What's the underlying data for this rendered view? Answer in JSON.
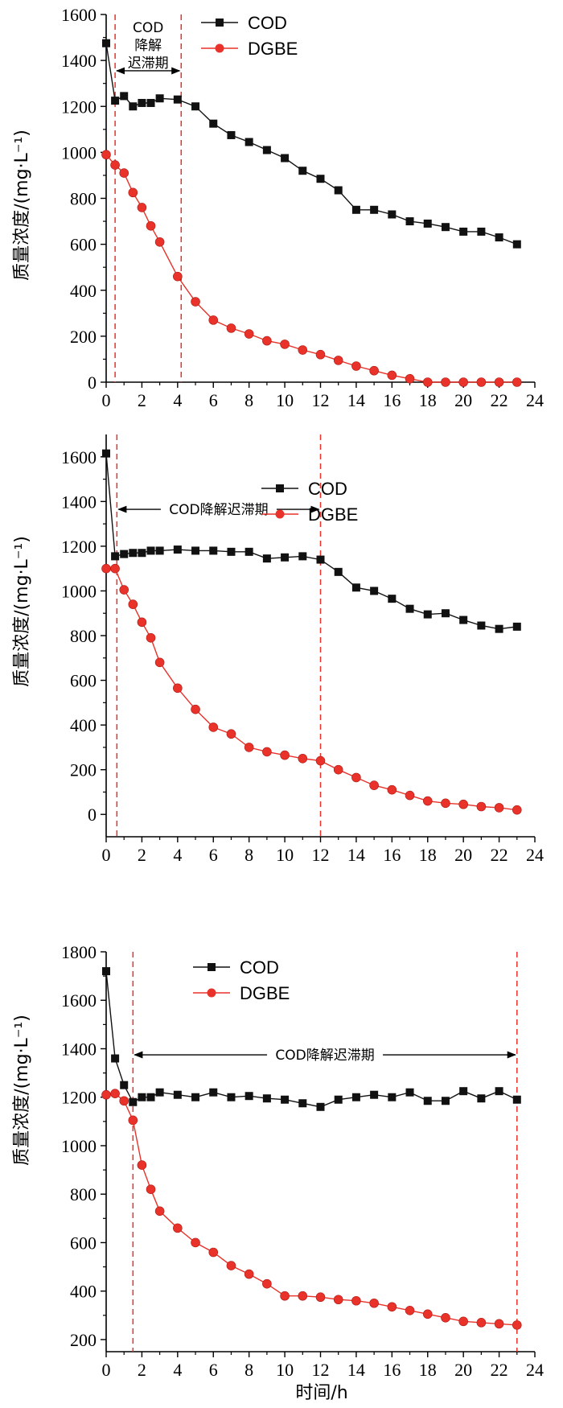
{
  "colors": {
    "cod": "#111111",
    "dgbe": "#e8322a",
    "guide": "#e8322a",
    "axis": "#000000"
  },
  "chart_data": [
    {
      "type": "line",
      "ylabel": "质量浓度/(mg·L⁻¹)",
      "xlabel": "",
      "xlim": [
        0,
        24
      ],
      "ylim": [
        0,
        1600
      ],
      "xticks": [
        0,
        2,
        4,
        6,
        8,
        10,
        12,
        14,
        16,
        18,
        20,
        22,
        24
      ],
      "yticks": [
        0,
        200,
        400,
        600,
        800,
        1000,
        1200,
        1400,
        1600
      ],
      "legend_position": "top-right",
      "series": [
        {
          "name": "COD",
          "marker": "square",
          "x": [
            0,
            0.5,
            1,
            1.5,
            2,
            2.5,
            3,
            4,
            5,
            6,
            7,
            8,
            9,
            10,
            11,
            12,
            13,
            14,
            15,
            16,
            17,
            18,
            19,
            20,
            21,
            22,
            23
          ],
          "y": [
            1475,
            1225,
            1245,
            1200,
            1215,
            1215,
            1235,
            1230,
            1200,
            1125,
            1075,
            1045,
            1010,
            975,
            920,
            885,
            835,
            750,
            750,
            730,
            700,
            690,
            675,
            655,
            655,
            630,
            600
          ]
        },
        {
          "name": "DGBE",
          "marker": "circle",
          "x": [
            0,
            0.5,
            1,
            1.5,
            2,
            2.5,
            3,
            4,
            5,
            6,
            7,
            8,
            9,
            10,
            11,
            12,
            13,
            14,
            15,
            16,
            17,
            18,
            19,
            20,
            21,
            22,
            23
          ],
          "y": [
            990,
            945,
            910,
            825,
            760,
            680,
            610,
            460,
            350,
            270,
            235,
            210,
            180,
            165,
            140,
            120,
            95,
            70,
            50,
            30,
            15,
            0,
            0,
            0,
            0,
            0,
            0
          ]
        }
      ],
      "vlines": [
        0.5,
        4.2
      ],
      "annotation": {
        "lines": [
          "COD",
          "降解",
          "迟滞期"
        ],
        "x_from": 0.5,
        "x_to": 4.2,
        "y": 1355
      }
    },
    {
      "type": "line",
      "ylabel": "质量浓度/(mg·L⁻¹)",
      "xlabel": "",
      "xlim": [
        0,
        24
      ],
      "ylim": [
        -100,
        1700
      ],
      "xticks": [
        0,
        2,
        4,
        6,
        8,
        10,
        12,
        14,
        16,
        18,
        20,
        22,
        24
      ],
      "yticks": [
        0,
        200,
        400,
        600,
        800,
        1000,
        1200,
        1400,
        1600
      ],
      "legend_position": "top-center",
      "series": [
        {
          "name": "COD",
          "marker": "square",
          "x": [
            0,
            0.5,
            1,
            1.5,
            2,
            2.5,
            3,
            4,
            5,
            6,
            7,
            8,
            9,
            10,
            11,
            12,
            13,
            14,
            15,
            16,
            17,
            18,
            19,
            20,
            21,
            22,
            23
          ],
          "y": [
            1615,
            1155,
            1165,
            1170,
            1170,
            1180,
            1180,
            1185,
            1180,
            1180,
            1175,
            1175,
            1145,
            1150,
            1155,
            1140,
            1085,
            1015,
            1000,
            965,
            920,
            895,
            900,
            870,
            845,
            830,
            840
          ]
        },
        {
          "name": "DGBE",
          "marker": "circle",
          "x": [
            0,
            0.5,
            1,
            1.5,
            2,
            2.5,
            3,
            4,
            5,
            6,
            7,
            8,
            9,
            10,
            11,
            12,
            13,
            14,
            15,
            16,
            17,
            18,
            19,
            20,
            21,
            22,
            23
          ],
          "y": [
            1100,
            1100,
            1005,
            940,
            860,
            790,
            680,
            565,
            470,
            390,
            360,
            300,
            280,
            265,
            250,
            240,
            200,
            165,
            130,
            110,
            85,
            60,
            50,
            45,
            35,
            30,
            20
          ]
        }
      ],
      "vlines": [
        0.6,
        12
      ],
      "annotation": {
        "lines": [
          "COD降解迟滞期"
        ],
        "x_from": 0.6,
        "x_to": 12,
        "y": 1365
      }
    },
    {
      "type": "line",
      "ylabel": "质量浓度/(mg·L⁻¹)",
      "xlabel": "时间/h",
      "xlim": [
        0,
        24
      ],
      "ylim": [
        150,
        1800
      ],
      "xticks": [
        0,
        2,
        4,
        6,
        8,
        10,
        12,
        14,
        16,
        18,
        20,
        22,
        24
      ],
      "yticks": [
        200,
        400,
        600,
        800,
        1000,
        1200,
        1400,
        1600,
        1800
      ],
      "legend_position": "top-left",
      "series": [
        {
          "name": "COD",
          "marker": "square",
          "x": [
            0,
            0.5,
            1,
            1.5,
            2,
            2.5,
            3,
            4,
            5,
            6,
            7,
            8,
            9,
            10,
            11,
            12,
            13,
            14,
            15,
            16,
            17,
            18,
            19,
            20,
            21,
            22,
            23
          ],
          "y": [
            1720,
            1360,
            1250,
            1180,
            1200,
            1200,
            1220,
            1210,
            1200,
            1220,
            1200,
            1205,
            1195,
            1190,
            1175,
            1160,
            1190,
            1200,
            1210,
            1200,
            1220,
            1185,
            1185,
            1225,
            1195,
            1225,
            1190
          ]
        },
        {
          "name": "DGBE",
          "marker": "circle",
          "x": [
            0,
            0.5,
            1,
            1.5,
            2,
            2.5,
            3,
            4,
            5,
            6,
            7,
            8,
            9,
            10,
            11,
            12,
            13,
            14,
            15,
            16,
            17,
            18,
            19,
            20,
            21,
            22,
            23
          ],
          "y": [
            1210,
            1215,
            1185,
            1105,
            920,
            820,
            730,
            660,
            600,
            560,
            505,
            470,
            430,
            380,
            380,
            375,
            365,
            360,
            350,
            335,
            320,
            305,
            290,
            275,
            270,
            265,
            260
          ]
        }
      ],
      "vlines": [
        1.5,
        23
      ],
      "annotation": {
        "lines": [
          "COD降解迟滞期"
        ],
        "x_from": 1.5,
        "x_to": 23,
        "y": 1375
      }
    }
  ]
}
